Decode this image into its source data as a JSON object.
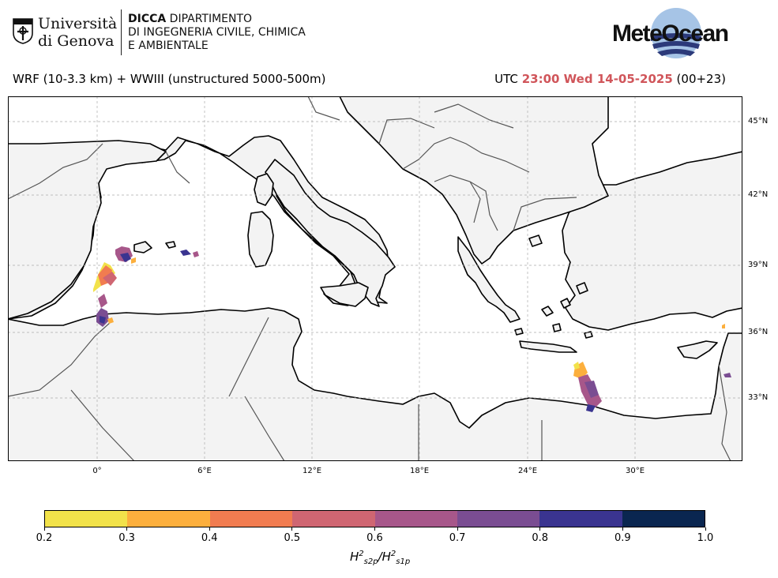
{
  "header": {
    "university": {
      "line1": "Università",
      "line2": "di Genova"
    },
    "department": {
      "bold": "DICCA",
      "line1_rest": " DIPARTIMENTO",
      "line2": "DI INGEGNERIA CIVILE, CHIMICA",
      "line3": "E AMBIENTALE"
    },
    "brand": "MeteOcean",
    "model_title": "WRF (10-3.3 km) + WWIII (unstructured 5000-500m)",
    "time_prefix": "UTC",
    "time_highlight": "23:00 Wed 14-05-2025",
    "time_suffix": "(00+23)"
  },
  "map": {
    "land_color": "#f3f3f3",
    "sea_color": "#ffffff",
    "grid": true,
    "lat_labels": [
      "45°N",
      "42°N",
      "39°N",
      "36°N",
      "33°N"
    ],
    "lon_labels": [
      "0°",
      "6°E",
      "12°E",
      "18°E",
      "24°E",
      "30°E"
    ]
  },
  "colorbar": {
    "tick_labels": [
      "0.2",
      "0.3",
      "0.4",
      "0.5",
      "0.6",
      "0.7",
      "0.8",
      "0.9",
      "1.0"
    ],
    "colors": [
      "#f2e24a",
      "#fcaf3d",
      "#f17c50",
      "#cf6672",
      "#a7578a",
      "#7a4d92",
      "#3a3490",
      "#0a2650"
    ],
    "label_base": "H",
    "label_num_sub": "s2p",
    "label_den_sub": "s1p",
    "label_exp": "2"
  }
}
